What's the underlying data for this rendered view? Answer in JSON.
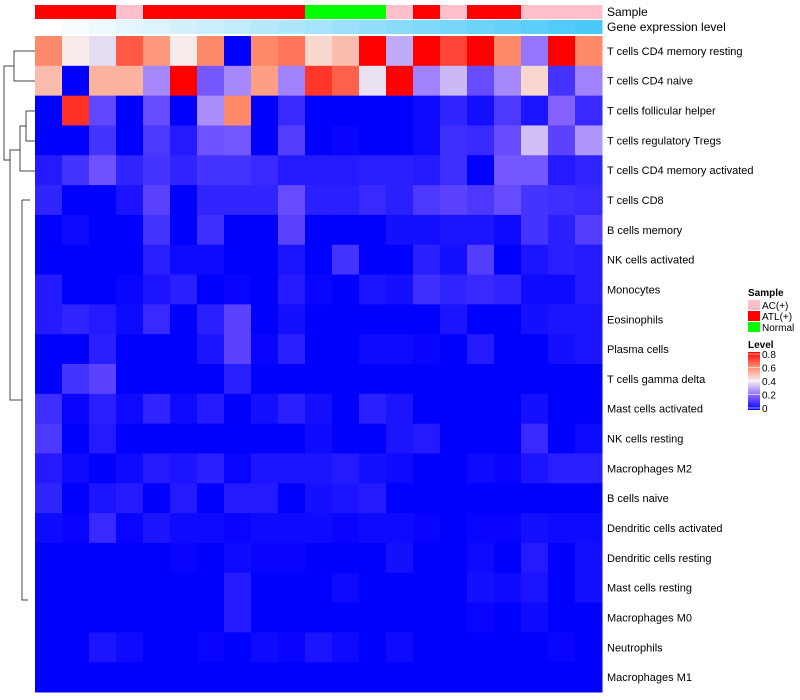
{
  "chart_data": {
    "type": "heatmap",
    "annotation_rows": [
      {
        "name": "Sample",
        "values": [
          "ATL(+)",
          "ATL(+)",
          "ATL(+)",
          "AC(+)",
          "ATL(+)",
          "ATL(+)",
          "ATL(+)",
          "ATL(+)",
          "ATL(+)",
          "ATL(+)",
          "Normal",
          "Normal",
          "Normal",
          "AC(+)",
          "ATL(+)",
          "AC(+)",
          "ATL(+)",
          "ATL(+)",
          "AC(+)",
          "AC(+)",
          "AC(+)"
        ]
      },
      {
        "name": "Gene expression level",
        "values": [
          0,
          0.05,
          0.1,
          0.15,
          0.2,
          0.25,
          0.3,
          0.35,
          0.4,
          0.45,
          0.5,
          0.55,
          0.6,
          0.65,
          0.7,
          0.75,
          0.8,
          0.85,
          0.9,
          0.95,
          1.0
        ]
      }
    ],
    "rows": [
      "T cells CD4 memory resting",
      "T cells CD4 naive",
      "T cells follicular helper",
      "T cells regulatory  Tregs",
      "T cells CD4 memory activated",
      "T cells CD8",
      "B cells memory",
      "NK cells activated",
      "Monocytes",
      "Eosinophils",
      "Plasma cells",
      "T cells gamma delta",
      "Mast cells activated",
      "NK cells resting",
      "Macrophages M2",
      "B cells naive",
      "Dendritic cells activated",
      "Dendritic cells resting",
      "Mast cells resting",
      "Macrophages M0",
      "Neutrophils",
      "Macrophages M1"
    ],
    "values": [
      [
        0.6,
        0.41,
        0.37,
        0.67,
        0.57,
        0.41,
        0.6,
        0,
        0.6,
        0.63,
        0.45,
        0.5,
        0.8,
        0.3,
        0.8,
        0.7,
        0.8,
        0.6,
        0.22,
        0.8,
        0.6
      ],
      [
        0.5,
        0,
        0.52,
        0.52,
        0.25,
        0.8,
        0.17,
        0.25,
        0.56,
        0.24,
        0.72,
        0.66,
        0.38,
        0.8,
        0.24,
        0.32,
        0.15,
        0.25,
        0.45,
        0.1,
        0.24
      ],
      [
        0,
        0.73,
        0.14,
        0,
        0.15,
        0,
        0.26,
        0.6,
        0,
        0.08,
        0,
        0,
        0,
        0,
        0.02,
        0.07,
        0.03,
        0.11,
        0.04,
        0.19,
        0.08
      ],
      [
        0,
        0,
        0.1,
        0,
        0.11,
        0.05,
        0.16,
        0.17,
        0,
        0.12,
        0,
        0.01,
        0,
        0,
        0.02,
        0.09,
        0.08,
        0.15,
        0.33,
        0.13,
        0.27
      ],
      [
        0.05,
        0.1,
        0.16,
        0.07,
        0.1,
        0.07,
        0.1,
        0.1,
        0.08,
        0.05,
        0.05,
        0.05,
        0.06,
        0.06,
        0.05,
        0.09,
        0,
        0.17,
        0.17,
        0.05,
        0.07
      ],
      [
        0.07,
        0,
        0,
        0.04,
        0.13,
        0,
        0.07,
        0.07,
        0.07,
        0.15,
        0.06,
        0.06,
        0.08,
        0.06,
        0.11,
        0.13,
        0.11,
        0.15,
        0.1,
        0.09,
        0.08
      ],
      [
        0,
        0.02,
        0,
        0,
        0.1,
        0,
        0.09,
        0,
        0,
        0.13,
        0,
        0,
        0,
        0.03,
        0.03,
        0.04,
        0.04,
        0.02,
        0.1,
        0.06,
        0.12
      ],
      [
        0,
        0,
        0,
        0,
        0.06,
        0.02,
        0.02,
        0,
        0,
        0.04,
        0,
        0.1,
        0,
        0,
        0.06,
        0.03,
        0.12,
        0,
        0.04,
        0.06,
        0.05
      ],
      [
        0.05,
        0,
        0,
        0.01,
        0.04,
        0.06,
        0,
        0.01,
        0,
        0.05,
        0.01,
        0,
        0.04,
        0.03,
        0.09,
        0.07,
        0.08,
        0.07,
        0.02,
        0.02,
        0.05
      ],
      [
        0.05,
        0.07,
        0.05,
        0.02,
        0.08,
        0,
        0.06,
        0.13,
        0,
        0.03,
        0,
        0,
        0,
        0,
        0,
        0.04,
        0,
        0,
        0.03,
        0.04,
        0.04
      ],
      [
        0,
        0,
        0.06,
        0,
        0,
        0,
        0.04,
        0.13,
        0.01,
        0.06,
        0,
        0,
        0.02,
        0.02,
        0.01,
        0,
        0.05,
        0,
        0,
        0.03,
        0.04
      ],
      [
        0,
        0.1,
        0.13,
        0,
        0,
        0,
        0,
        0.06,
        0,
        0,
        0,
        0,
        0,
        0,
        0,
        0,
        0,
        0,
        0,
        0,
        0
      ],
      [
        0.09,
        0.01,
        0.06,
        0.02,
        0.07,
        0.02,
        0.05,
        0,
        0.03,
        0.06,
        0.03,
        0,
        0.06,
        0.04,
        0,
        0,
        0,
        0,
        0.03,
        0,
        0
      ],
      [
        0.11,
        0,
        0.05,
        0,
        0,
        0,
        0,
        0,
        0,
        0,
        0.02,
        0,
        0,
        0.04,
        0.05,
        0,
        0,
        0,
        0.08,
        0,
        0.02
      ],
      [
        0.05,
        0.02,
        0,
        0.02,
        0.05,
        0.04,
        0.06,
        0.01,
        0.04,
        0.04,
        0.04,
        0.05,
        0.03,
        0.02,
        0,
        0,
        0.02,
        0.01,
        0.04,
        0.06,
        0.06
      ],
      [
        0.07,
        0,
        0.04,
        0.05,
        0,
        0.05,
        0,
        0.05,
        0.05,
        0,
        0.03,
        0.04,
        0.05,
        0,
        0,
        0,
        0,
        0,
        0,
        0,
        0
      ],
      [
        0.02,
        0.01,
        0.08,
        0.01,
        0.04,
        0.02,
        0.02,
        0.01,
        0.02,
        0.02,
        0.02,
        0.01,
        0.02,
        0.02,
        0.01,
        0,
        0.01,
        0.01,
        0.03,
        0.02,
        0.02
      ],
      [
        0,
        0,
        0,
        0,
        0,
        0.01,
        0,
        0.02,
        0.01,
        0.01,
        0,
        0,
        0,
        0.03,
        0,
        0,
        0.02,
        0,
        0.05,
        0,
        0.03
      ],
      [
        0,
        0,
        0,
        0,
        0,
        0,
        0,
        0.05,
        0,
        0,
        0,
        0.02,
        0,
        0,
        0,
        0,
        0.03,
        0.02,
        0.04,
        0,
        0.03
      ],
      [
        0,
        0,
        0,
        0,
        0,
        0,
        0,
        0.05,
        0,
        0,
        0,
        0,
        0,
        0,
        0,
        0,
        0.01,
        0,
        0.02,
        0,
        0
      ],
      [
        0,
        0,
        0.04,
        0.02,
        0,
        0,
        0.01,
        0,
        0.02,
        0.01,
        0.04,
        0.02,
        0,
        0.02,
        0,
        0,
        0,
        0,
        0,
        0.01,
        0
      ],
      [
        0,
        0,
        0,
        0,
        0,
        0,
        0,
        0,
        0,
        0,
        0,
        0,
        0,
        0,
        0,
        0,
        0,
        0,
        0,
        0,
        0
      ]
    ],
    "color_range": [
      0,
      0.8
    ],
    "sample_colors": {
      "AC(+)": "#FFC0CB",
      "ATL(+)": "#FF0000",
      "Normal": "#00FF00"
    },
    "legend": {
      "sample_title": "Sample",
      "sample_items": [
        "AC(+)",
        "ATL(+)",
        "Normal"
      ],
      "level_title": "Level",
      "level_ticks": [
        "0.8",
        "0.6",
        "0.4",
        "0.2",
        "0"
      ]
    }
  }
}
